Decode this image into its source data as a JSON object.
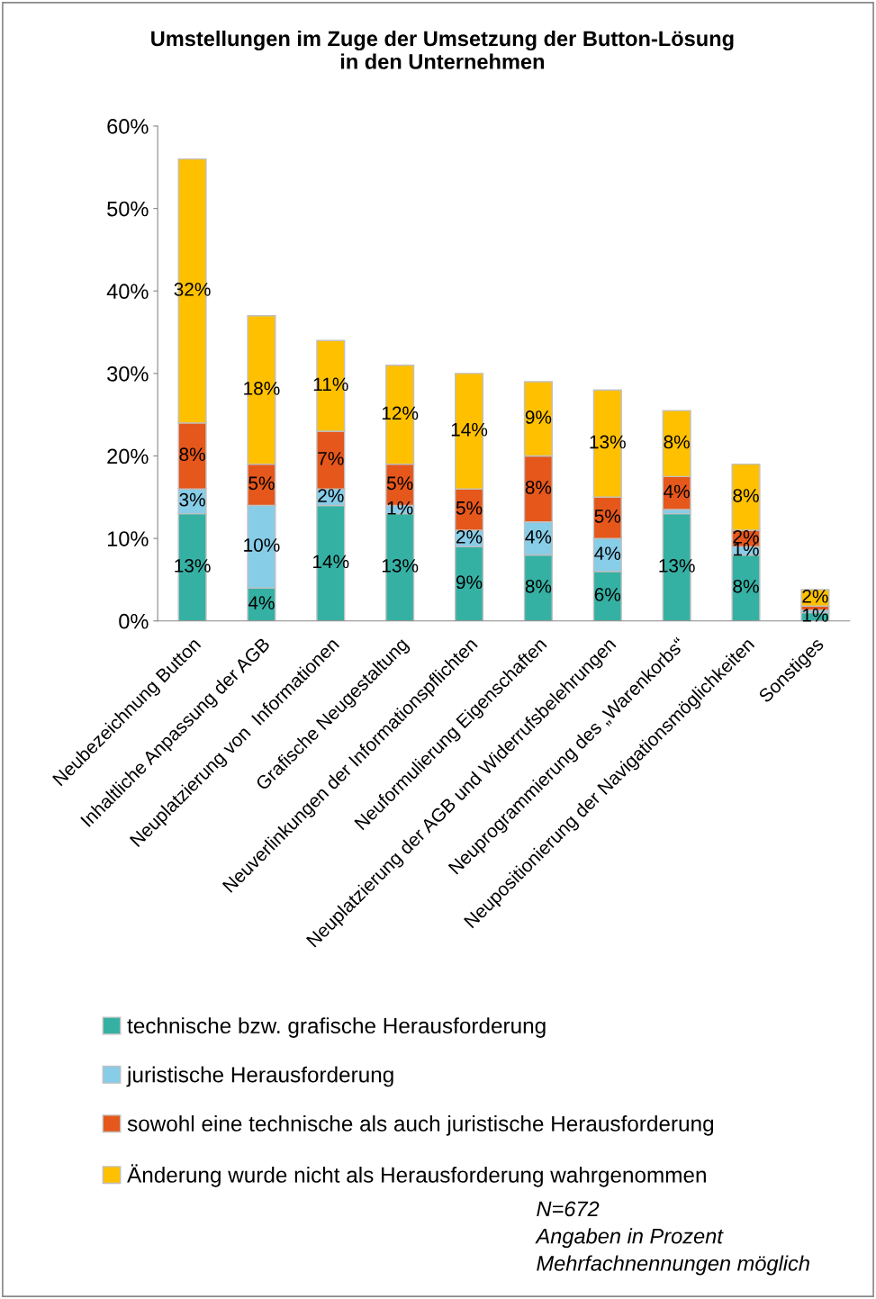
{
  "chart_data": {
    "type": "bar",
    "stacked": true,
    "title": "Umstellungen im Zuge der Umsetzung der Button-Lösung\nin den Unternehmen",
    "categories": [
      "Neubezeichnung Button",
      "Inhaltliche Anpassung der AGB",
      "Neuplatzierung von  Informationen",
      "Grafische Neugestaltung",
      "Neuverlinkungen der Informationspflichten",
      "Neuformulierung Eigenschaften",
      "Neuplatzierung der AGB und Widerrufsbelehrungen",
      "Neuprogrammierung des „Warenkorbs“",
      "Neupositionierung der Navigationsmöglichkeiten",
      "Sonstiges"
    ],
    "series": [
      {
        "name": "technische bzw. grafische Herausforderung",
        "color": "#35b1a4",
        "values": [
          13,
          4,
          14,
          13,
          9,
          8,
          6,
          13,
          8,
          1
        ],
        "value_labels": [
          "13%",
          "4%",
          "14%",
          "13%",
          "9%",
          "8%",
          "6%",
          "13%",
          "8%",
          "1%"
        ]
      },
      {
        "name": "juristische Herausforderung",
        "color": "#87cde8",
        "values": [
          3,
          10,
          2,
          1,
          2,
          4,
          4,
          0.5,
          1,
          0.3
        ],
        "value_labels": [
          "3%",
          "10%",
          "2%",
          "1%",
          "2%",
          "4%",
          "4%",
          null,
          "1%",
          null
        ]
      },
      {
        "name": "sowohl eine technische als auch juristische Herausforderung",
        "color": "#e5571b",
        "values": [
          8,
          5,
          7,
          5,
          5,
          8,
          5,
          4,
          2,
          0.5
        ],
        "value_labels": [
          "8%",
          "5%",
          "7%",
          "5%",
          "5%",
          "8%",
          "5%",
          "4%",
          "2%",
          null
        ]
      },
      {
        "name": "Änderung wurde nicht als Herausforderung wahrgenommen",
        "color": "#ffc000",
        "values": [
          32,
          18,
          11,
          12,
          14,
          9,
          13,
          8,
          8,
          2
        ],
        "value_labels": [
          "32%",
          "18%",
          "11%",
          "12%",
          "14%",
          "9%",
          "13%",
          "8%",
          "8%",
          "2%"
        ]
      }
    ],
    "ylim": [
      0,
      60
    ],
    "yticks": [
      {
        "value": 0,
        "label": "0%"
      },
      {
        "value": 10,
        "label": "10%"
      },
      {
        "value": 20,
        "label": "20%"
      },
      {
        "value": 30,
        "label": "30%"
      },
      {
        "value": 40,
        "label": "40%"
      },
      {
        "value": 50,
        "label": "50%"
      },
      {
        "value": 60,
        "label": "60%"
      }
    ],
    "legend": "bottom",
    "annotations": [
      "N=672",
      "Angaben in Prozent",
      "Mehrfachnennungen möglich"
    ]
  }
}
